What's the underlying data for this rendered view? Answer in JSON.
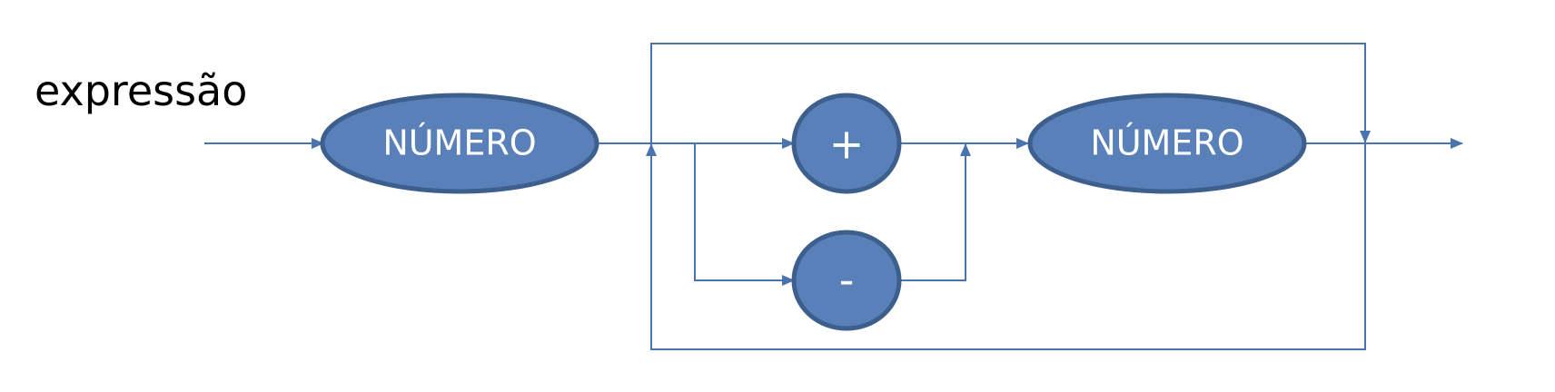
{
  "title": "expressão",
  "nodes": {
    "numero_1": "NÚMERO",
    "plus": "+",
    "minus": "-",
    "numero_2": "NÚMERO"
  },
  "colors": {
    "node_fill": "#5a80ba",
    "node_stroke": "#3d5f8e",
    "line": "#4a74ad",
    "title": "#000000",
    "label": "#ffffff"
  }
}
